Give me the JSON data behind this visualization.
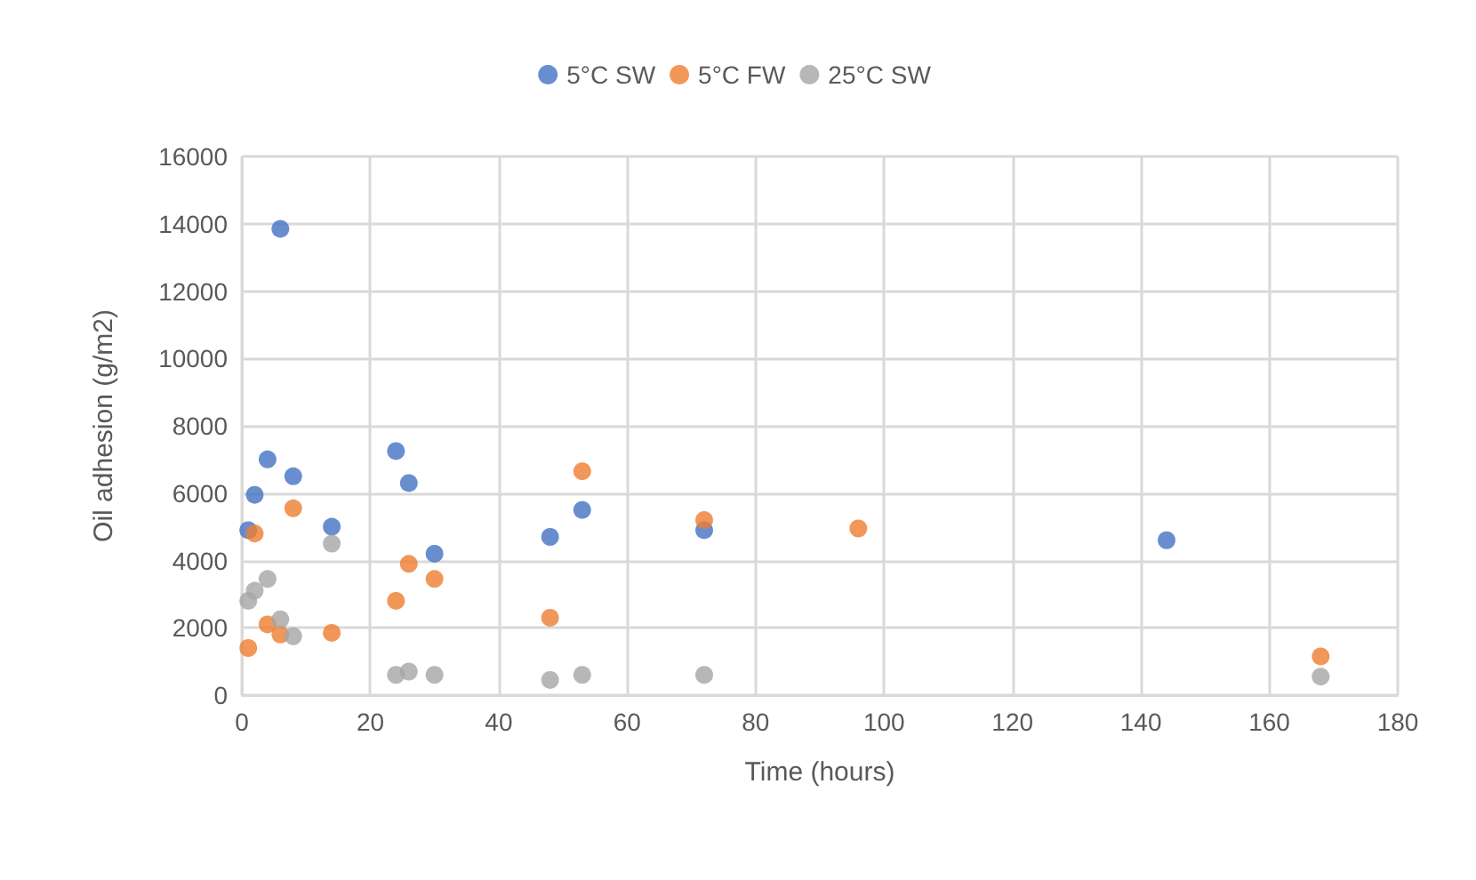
{
  "chart_data": {
    "type": "scatter",
    "xlabel": "Time (hours)",
    "ylabel": "Oil adhesion (g/m2)",
    "xlim": [
      0,
      180
    ],
    "xticks": [
      0,
      20,
      40,
      60,
      80,
      100,
      120,
      140,
      160,
      180
    ],
    "ylim": [
      0,
      16000
    ],
    "yticks": [
      0,
      2000,
      4000,
      6000,
      8000,
      10000,
      12000,
      14000,
      16000
    ],
    "grid": true,
    "legend": "top",
    "marker": "circle",
    "series": [
      {
        "name": "5°C SW",
        "color": "#4472c4",
        "x": [
          1,
          2,
          4,
          6,
          8,
          14,
          24,
          26,
          30,
          48,
          53,
          72,
          144
        ],
        "values": [
          4900,
          5950,
          7000,
          13850,
          6500,
          5000,
          7250,
          6300,
          4200,
          4700,
          5500,
          4900,
          4600
        ]
      },
      {
        "name": "5°C FW",
        "color": "#ed7d31",
        "x": [
          1,
          2,
          4,
          6,
          8,
          14,
          24,
          26,
          30,
          48,
          53,
          72,
          96,
          168
        ],
        "values": [
          1400,
          4800,
          2100,
          1800,
          5550,
          1850,
          2800,
          3900,
          3450,
          2300,
          6650,
          5200,
          4950,
          1150
        ]
      },
      {
        "name": "25°C SW",
        "color": "#a5a5a5",
        "x": [
          1,
          2,
          4,
          6,
          8,
          14,
          24,
          26,
          30,
          48,
          53,
          72,
          168
        ],
        "values": [
          2800,
          3100,
          3450,
          2250,
          1750,
          4500,
          600,
          700,
          600,
          450,
          600,
          600,
          550
        ]
      }
    ]
  }
}
